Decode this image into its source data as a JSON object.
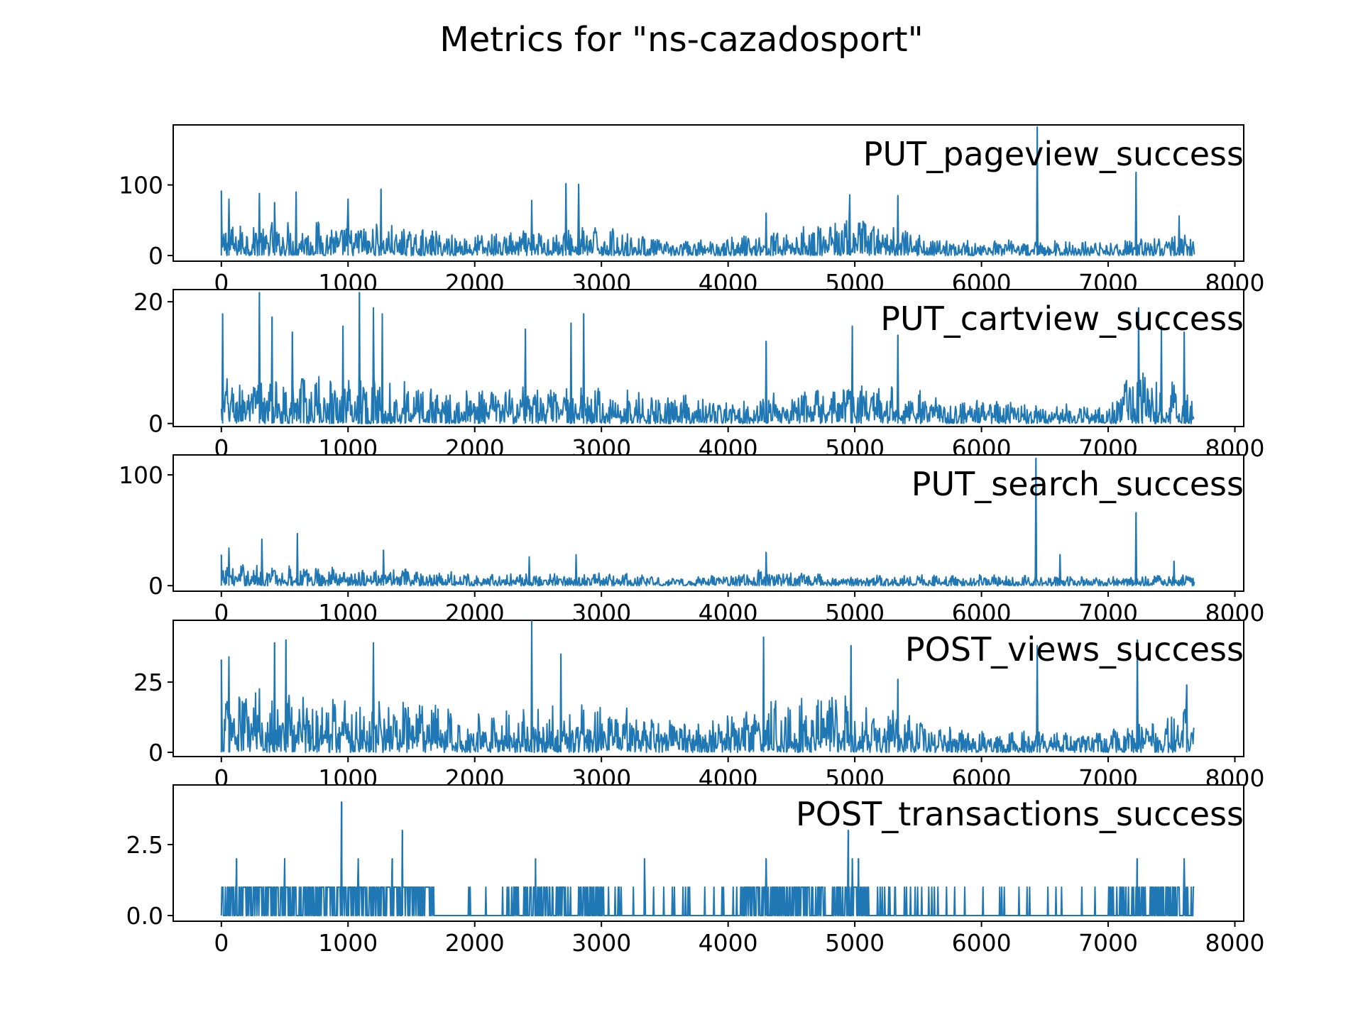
{
  "figure": {
    "title": "Metrics for \"ns-cazadosport\""
  },
  "colors": {
    "series": "#1f77b4",
    "axes": "#000000",
    "background": "#ffffff"
  },
  "chart_data": [
    {
      "type": "line",
      "title": "",
      "label": "PUT_pageview_success",
      "xlabel": "",
      "ylabel": "",
      "xlim": [
        -380,
        8070
      ],
      "ylim": [
        -8,
        185
      ],
      "xticks": [
        0,
        1000,
        2000,
        3000,
        4000,
        5000,
        6000,
        7000,
        8000
      ],
      "xtick_labels": [
        "0",
        "1000",
        "2000",
        "3000",
        "4000",
        "5000",
        "6000",
        "7000",
        "8000"
      ],
      "yticks": [
        0,
        100
      ],
      "ytick_labels": [
        "0",
        "100"
      ],
      "grid": false,
      "legend": "none",
      "x_range": [
        0,
        7680
      ],
      "peaks": [
        {
          "x": 0,
          "y": 92
        },
        {
          "x": 60,
          "y": 80
        },
        {
          "x": 300,
          "y": 88
        },
        {
          "x": 420,
          "y": 75
        },
        {
          "x": 590,
          "y": 90
        },
        {
          "x": 1000,
          "y": 80
        },
        {
          "x": 1260,
          "y": 94
        },
        {
          "x": 2450,
          "y": 78
        },
        {
          "x": 2720,
          "y": 102
        },
        {
          "x": 2820,
          "y": 101
        },
        {
          "x": 4300,
          "y": 60
        },
        {
          "x": 4960,
          "y": 86
        },
        {
          "x": 5340,
          "y": 85
        },
        {
          "x": 6440,
          "y": 182
        },
        {
          "x": 7220,
          "y": 118
        },
        {
          "x": 7560,
          "y": 56
        }
      ],
      "baseline_envelope": [
        {
          "x": 0,
          "y": 50
        },
        {
          "x": 1000,
          "y": 50
        },
        {
          "x": 2000,
          "y": 32
        },
        {
          "x": 3000,
          "y": 42
        },
        {
          "x": 3600,
          "y": 20
        },
        {
          "x": 4300,
          "y": 35
        },
        {
          "x": 5000,
          "y": 55
        },
        {
          "x": 5600,
          "y": 28
        },
        {
          "x": 6000,
          "y": 22
        },
        {
          "x": 7000,
          "y": 22
        },
        {
          "x": 7680,
          "y": 35
        }
      ]
    },
    {
      "type": "line",
      "title": "",
      "label": "PUT_cartview_success",
      "xlabel": "",
      "ylabel": "",
      "xlim": [
        -380,
        8070
      ],
      "ylim": [
        -0.5,
        22
      ],
      "xticks": [
        0,
        1000,
        2000,
        3000,
        4000,
        5000,
        6000,
        7000,
        8000
      ],
      "xtick_labels": [
        "0",
        "1000",
        "2000",
        "3000",
        "4000",
        "5000",
        "6000",
        "7000",
        "8000"
      ],
      "yticks": [
        0,
        20
      ],
      "ytick_labels": [
        "0",
        "20"
      ],
      "grid": false,
      "legend": "none",
      "x_range": [
        0,
        7680
      ],
      "peaks": [
        {
          "x": 10,
          "y": 18
        },
        {
          "x": 300,
          "y": 21.5
        },
        {
          "x": 400,
          "y": 17.5
        },
        {
          "x": 560,
          "y": 15
        },
        {
          "x": 960,
          "y": 16
        },
        {
          "x": 1090,
          "y": 21.5
        },
        {
          "x": 1200,
          "y": 19
        },
        {
          "x": 1270,
          "y": 18
        },
        {
          "x": 2400,
          "y": 15.5
        },
        {
          "x": 2760,
          "y": 16.5
        },
        {
          "x": 2860,
          "y": 18
        },
        {
          "x": 4300,
          "y": 13.5
        },
        {
          "x": 4980,
          "y": 16
        },
        {
          "x": 5340,
          "y": 14.5
        },
        {
          "x": 7240,
          "y": 19
        },
        {
          "x": 7420,
          "y": 16
        },
        {
          "x": 7600,
          "y": 15
        }
      ],
      "baseline_envelope": [
        {
          "x": 0,
          "y": 8
        },
        {
          "x": 1000,
          "y": 8
        },
        {
          "x": 2000,
          "y": 6
        },
        {
          "x": 3000,
          "y": 6
        },
        {
          "x": 4000,
          "y": 4
        },
        {
          "x": 5000,
          "y": 7
        },
        {
          "x": 6000,
          "y": 4
        },
        {
          "x": 7000,
          "y": 3
        },
        {
          "x": 7200,
          "y": 9
        },
        {
          "x": 7680,
          "y": 6
        }
      ]
    },
    {
      "type": "line",
      "title": "",
      "label": "PUT_search_success",
      "xlabel": "",
      "ylabel": "",
      "xlim": [
        -380,
        8070
      ],
      "ylim": [
        -5,
        118
      ],
      "xticks": [
        0,
        1000,
        2000,
        3000,
        4000,
        5000,
        6000,
        7000,
        8000
      ],
      "xtick_labels": [
        "0",
        "1000",
        "2000",
        "3000",
        "4000",
        "5000",
        "6000",
        "7000",
        "8000"
      ],
      "yticks": [
        0,
        100
      ],
      "ytick_labels": [
        "0",
        "100"
      ],
      "grid": false,
      "legend": "none",
      "x_range": [
        0,
        7680
      ],
      "peaks": [
        {
          "x": 0,
          "y": 28
        },
        {
          "x": 60,
          "y": 34
        },
        {
          "x": 320,
          "y": 42
        },
        {
          "x": 600,
          "y": 47
        },
        {
          "x": 1280,
          "y": 32
        },
        {
          "x": 2430,
          "y": 26
        },
        {
          "x": 2800,
          "y": 28
        },
        {
          "x": 4300,
          "y": 30
        },
        {
          "x": 6430,
          "y": 115
        },
        {
          "x": 6620,
          "y": 28
        },
        {
          "x": 7220,
          "y": 66
        },
        {
          "x": 7520,
          "y": 22
        }
      ],
      "baseline_envelope": [
        {
          "x": 0,
          "y": 20
        },
        {
          "x": 1000,
          "y": 18
        },
        {
          "x": 2000,
          "y": 12
        },
        {
          "x": 3000,
          "y": 12
        },
        {
          "x": 3700,
          "y": 8
        },
        {
          "x": 4300,
          "y": 15
        },
        {
          "x": 5000,
          "y": 10
        },
        {
          "x": 6000,
          "y": 10
        },
        {
          "x": 7000,
          "y": 8
        },
        {
          "x": 7680,
          "y": 12
        }
      ]
    },
    {
      "type": "line",
      "title": "",
      "label": "POST_views_success",
      "xlabel": "",
      "ylabel": "",
      "xlim": [
        -380,
        8070
      ],
      "ylim": [
        -1.5,
        47
      ],
      "xticks": [
        0,
        1000,
        2000,
        3000,
        4000,
        5000,
        6000,
        7000,
        8000
      ],
      "xtick_labels": [
        "0",
        "1000",
        "2000",
        "3000",
        "4000",
        "5000",
        "6000",
        "7000",
        "8000"
      ],
      "yticks": [
        0,
        25
      ],
      "ytick_labels": [
        "0",
        "25"
      ],
      "grid": false,
      "legend": "none",
      "x_range": [
        0,
        7680
      ],
      "peaks": [
        {
          "x": 0,
          "y": 33
        },
        {
          "x": 60,
          "y": 34
        },
        {
          "x": 420,
          "y": 39
        },
        {
          "x": 510,
          "y": 40
        },
        {
          "x": 1200,
          "y": 39
        },
        {
          "x": 2450,
          "y": 47
        },
        {
          "x": 2680,
          "y": 35
        },
        {
          "x": 4280,
          "y": 41
        },
        {
          "x": 4970,
          "y": 38
        },
        {
          "x": 5340,
          "y": 26
        },
        {
          "x": 6440,
          "y": 38
        },
        {
          "x": 7230,
          "y": 40
        },
        {
          "x": 7620,
          "y": 24
        }
      ],
      "baseline_envelope": [
        {
          "x": 0,
          "y": 25
        },
        {
          "x": 1000,
          "y": 22
        },
        {
          "x": 2000,
          "y": 15
        },
        {
          "x": 3000,
          "y": 18
        },
        {
          "x": 3800,
          "y": 10
        },
        {
          "x": 4300,
          "y": 20
        },
        {
          "x": 5000,
          "y": 22
        },
        {
          "x": 5600,
          "y": 12
        },
        {
          "x": 6000,
          "y": 8
        },
        {
          "x": 7000,
          "y": 8
        },
        {
          "x": 7680,
          "y": 18
        }
      ]
    },
    {
      "type": "line",
      "title": "",
      "label": "POST_transactions_success",
      "xlabel": "",
      "ylabel": "",
      "xlim": [
        -380,
        8070
      ],
      "ylim": [
        -0.2,
        4.6
      ],
      "xticks": [
        0,
        1000,
        2000,
        3000,
        4000,
        5000,
        6000,
        7000,
        8000
      ],
      "xtick_labels": [
        "0",
        "1000",
        "2000",
        "3000",
        "4000",
        "5000",
        "6000",
        "7000",
        "8000"
      ],
      "yticks": [
        0.0,
        2.5
      ],
      "ytick_labels": [
        "0.0",
        "2.5"
      ],
      "grid": false,
      "legend": "none",
      "x_range": [
        0,
        7680
      ],
      "note_values": "integer event counts (0, 1, 2, 3, 4)",
      "peaks": [
        {
          "x": 120,
          "y": 2
        },
        {
          "x": 500,
          "y": 2
        },
        {
          "x": 950,
          "y": 4
        },
        {
          "x": 1080,
          "y": 2
        },
        {
          "x": 1350,
          "y": 2
        },
        {
          "x": 1430,
          "y": 3
        },
        {
          "x": 2480,
          "y": 2
        },
        {
          "x": 3340,
          "y": 2
        },
        {
          "x": 4300,
          "y": 2
        },
        {
          "x": 4950,
          "y": 3
        },
        {
          "x": 4980,
          "y": 2
        },
        {
          "x": 5030,
          "y": 2
        },
        {
          "x": 7230,
          "y": 2
        },
        {
          "x": 7600,
          "y": 2
        }
      ],
      "event_density": [
        {
          "from": 0,
          "to": 1700,
          "rate": 0.55
        },
        {
          "from": 1700,
          "to": 2250,
          "rate": 0.06
        },
        {
          "from": 2250,
          "to": 3000,
          "rate": 0.35
        },
        {
          "from": 3000,
          "to": 4100,
          "rate": 0.08
        },
        {
          "from": 4100,
          "to": 5100,
          "rate": 0.45
        },
        {
          "from": 5100,
          "to": 5800,
          "rate": 0.18
        },
        {
          "from": 5800,
          "to": 7000,
          "rate": 0.05
        },
        {
          "from": 7000,
          "to": 7680,
          "rate": 0.35
        }
      ]
    }
  ]
}
